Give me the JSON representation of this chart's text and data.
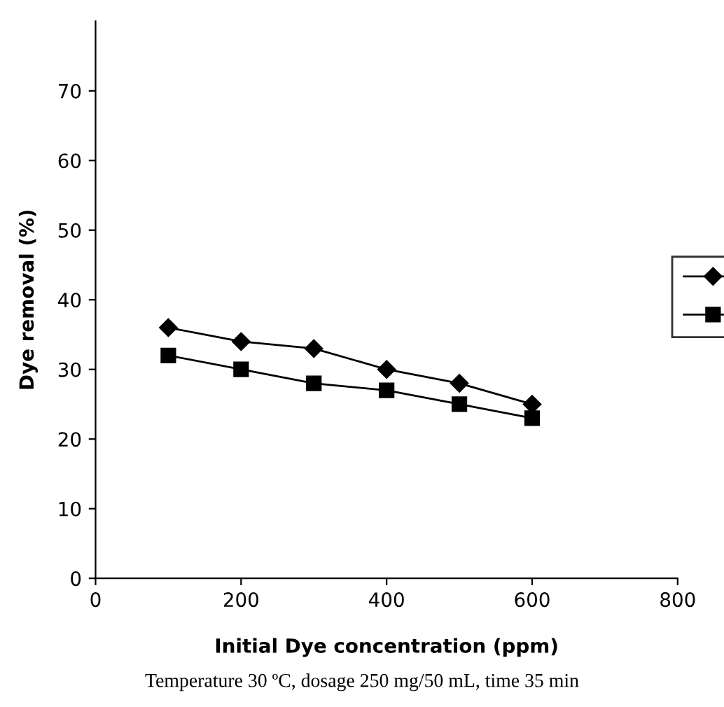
{
  "chart_data": {
    "type": "line",
    "xlabel": "Initial Dye concentration (ppm)",
    "ylabel": "Dye removal (%)",
    "x": [
      100,
      200,
      300,
      400,
      500,
      600
    ],
    "series": [
      {
        "color": "#000000",
        "marker": "diamond",
        "values": [
          36,
          34,
          33,
          30,
          28,
          25
        ]
      },
      {
        "color": "#000000",
        "marker": "square",
        "values": [
          32,
          30,
          28,
          27,
          25,
          23
        ]
      }
    ],
    "xlim": [
      0,
      800
    ],
    "xticks": [
      0,
      200,
      400,
      600,
      800
    ],
    "ylim": [
      0,
      80
    ],
    "yticks": [
      0,
      10,
      20,
      30,
      40,
      50,
      60,
      70
    ],
    "grid": false,
    "line_style": "solid",
    "annotations": [
      "Temperature 30 ºC, dosage 250 mg/50 mL, time 35 min"
    ]
  }
}
